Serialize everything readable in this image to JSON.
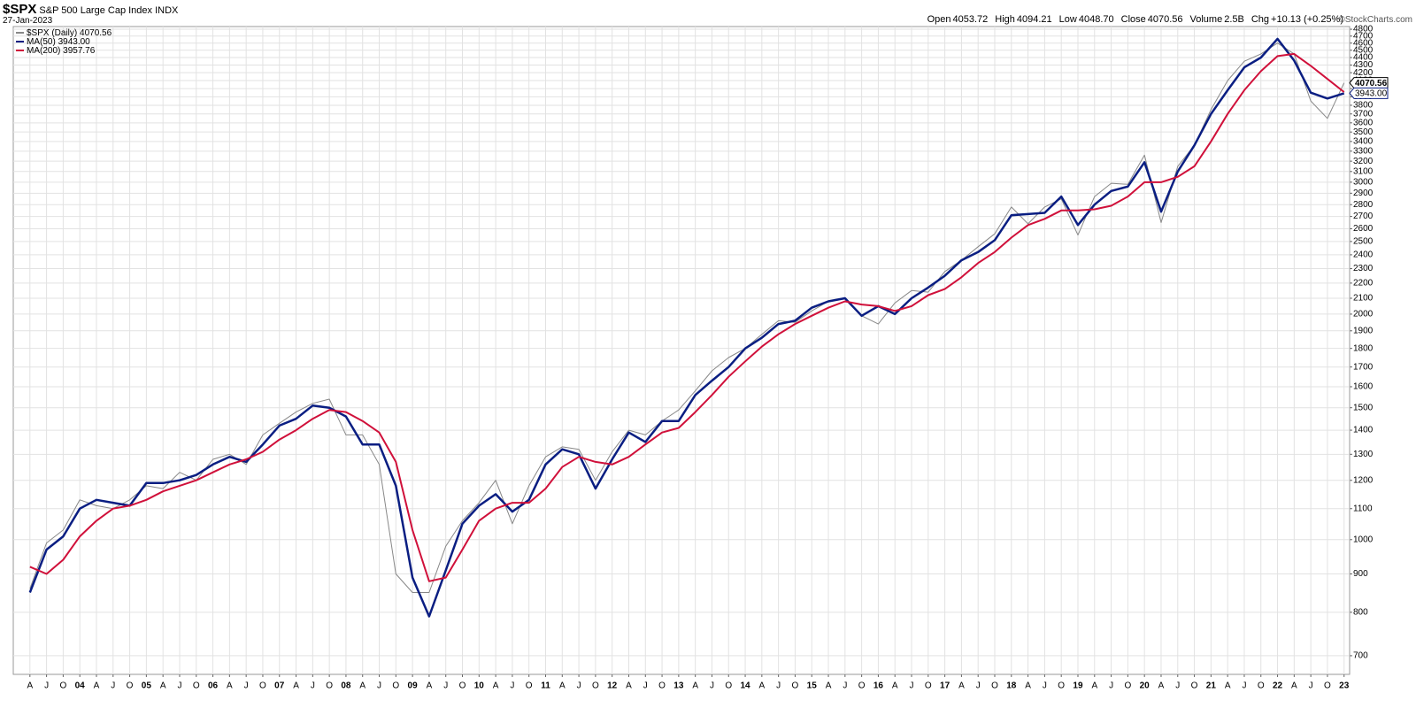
{
  "chart_data": {
    "type": "line",
    "symbol": "$SPX",
    "title": "S&P 500 Large Cap Index",
    "exchange": "INDX",
    "date": "27-Jan-2023",
    "quote": [
      {
        "label": "Open",
        "value": "4053.72"
      },
      {
        "label": "High",
        "value": "4094.21"
      },
      {
        "label": "Low",
        "value": "4048.70"
      },
      {
        "label": "Close",
        "value": "4070.56"
      },
      {
        "label": "Volume",
        "value": "2.5B"
      },
      {
        "label": "Chg",
        "value": "+10.13 (+0.25%)"
      }
    ],
    "copyright": "©StockCharts.com",
    "log_scale": true,
    "grid": true,
    "xlim": [
      "2003-01",
      "2023-02"
    ],
    "ylim": [
      661,
      4840
    ],
    "yticks": [
      700,
      800,
      900,
      1000,
      1100,
      1200,
      1300,
      1400,
      1500,
      1600,
      1700,
      1800,
      1900,
      2000,
      2100,
      2200,
      2300,
      2400,
      2500,
      2600,
      2700,
      2800,
      2900,
      3000,
      3100,
      3200,
      3300,
      3400,
      3500,
      3600,
      3700,
      3800,
      3900,
      4000,
      4100,
      4200,
      4300,
      4400,
      4500,
      4600,
      4700,
      4800
    ],
    "xticks": [
      {
        "value": "2003-04",
        "label": "A"
      },
      {
        "value": "2003-07",
        "label": "J"
      },
      {
        "value": "2003-10",
        "label": "O"
      },
      {
        "value": "2004-01",
        "label": "04"
      },
      {
        "value": "2004-04",
        "label": "A"
      },
      {
        "value": "2004-07",
        "label": "J"
      },
      {
        "value": "2004-10",
        "label": "O"
      },
      {
        "value": "2005-01",
        "label": "05"
      },
      {
        "value": "2005-04",
        "label": "A"
      },
      {
        "value": "2005-07",
        "label": "J"
      },
      {
        "value": "2005-10",
        "label": "O"
      },
      {
        "value": "2006-01",
        "label": "06"
      },
      {
        "value": "2006-04",
        "label": "A"
      },
      {
        "value": "2006-07",
        "label": "J"
      },
      {
        "value": "2006-10",
        "label": "O"
      },
      {
        "value": "2007-01",
        "label": "07"
      },
      {
        "value": "2007-04",
        "label": "A"
      },
      {
        "value": "2007-07",
        "label": "J"
      },
      {
        "value": "2007-10",
        "label": "O"
      },
      {
        "value": "2008-01",
        "label": "08"
      },
      {
        "value": "2008-04",
        "label": "A"
      },
      {
        "value": "2008-07",
        "label": "J"
      },
      {
        "value": "2008-10",
        "label": "O"
      },
      {
        "value": "2009-01",
        "label": "09"
      },
      {
        "value": "2009-04",
        "label": "A"
      },
      {
        "value": "2009-07",
        "label": "J"
      },
      {
        "value": "2009-10",
        "label": "O"
      },
      {
        "value": "2010-01",
        "label": "10"
      },
      {
        "value": "2010-04",
        "label": "A"
      },
      {
        "value": "2010-07",
        "label": "J"
      },
      {
        "value": "2010-10",
        "label": "O"
      },
      {
        "value": "2011-01",
        "label": "11"
      },
      {
        "value": "2011-04",
        "label": "A"
      },
      {
        "value": "2011-07",
        "label": "J"
      },
      {
        "value": "2011-10",
        "label": "O"
      },
      {
        "value": "2012-01",
        "label": "12"
      },
      {
        "value": "2012-04",
        "label": "A"
      },
      {
        "value": "2012-07",
        "label": "J"
      },
      {
        "value": "2012-10",
        "label": "O"
      },
      {
        "value": "2013-01",
        "label": "13"
      },
      {
        "value": "2013-04",
        "label": "A"
      },
      {
        "value": "2013-07",
        "label": "J"
      },
      {
        "value": "2013-10",
        "label": "O"
      },
      {
        "value": "2014-01",
        "label": "14"
      },
      {
        "value": "2014-04",
        "label": "A"
      },
      {
        "value": "2014-07",
        "label": "J"
      },
      {
        "value": "2014-10",
        "label": "O"
      },
      {
        "value": "2015-01",
        "label": "15"
      },
      {
        "value": "2015-04",
        "label": "A"
      },
      {
        "value": "2015-07",
        "label": "J"
      },
      {
        "value": "2015-10",
        "label": "O"
      },
      {
        "value": "2016-01",
        "label": "16"
      },
      {
        "value": "2016-04",
        "label": "A"
      },
      {
        "value": "2016-07",
        "label": "J"
      },
      {
        "value": "2016-10",
        "label": "O"
      },
      {
        "value": "2017-01",
        "label": "17"
      },
      {
        "value": "2017-04",
        "label": "A"
      },
      {
        "value": "2017-07",
        "label": "J"
      },
      {
        "value": "2017-10",
        "label": "O"
      },
      {
        "value": "2018-01",
        "label": "18"
      },
      {
        "value": "2018-04",
        "label": "A"
      },
      {
        "value": "2018-07",
        "label": "J"
      },
      {
        "value": "2018-10",
        "label": "O"
      },
      {
        "value": "2019-01",
        "label": "19"
      },
      {
        "value": "2019-04",
        "label": "A"
      },
      {
        "value": "2019-07",
        "label": "J"
      },
      {
        "value": "2019-10",
        "label": "O"
      },
      {
        "value": "2020-01",
        "label": "20"
      },
      {
        "value": "2020-04",
        "label": "A"
      },
      {
        "value": "2020-07",
        "label": "J"
      },
      {
        "value": "2020-10",
        "label": "O"
      },
      {
        "value": "2021-01",
        "label": "21"
      },
      {
        "value": "2021-04",
        "label": "A"
      },
      {
        "value": "2021-07",
        "label": "J"
      },
      {
        "value": "2021-10",
        "label": "O"
      },
      {
        "value": "2022-01",
        "label": "22"
      },
      {
        "value": "2022-04",
        "label": "A"
      },
      {
        "value": "2022-07",
        "label": "J"
      },
      {
        "value": "2022-10",
        "label": "O"
      },
      {
        "value": "2023-01",
        "label": "23"
      }
    ],
    "x": [
      "2003-04",
      "2003-07",
      "2003-10",
      "2004-01",
      "2004-04",
      "2004-07",
      "2004-10",
      "2005-01",
      "2005-04",
      "2005-07",
      "2005-10",
      "2006-01",
      "2006-04",
      "2006-07",
      "2006-10",
      "2007-01",
      "2007-04",
      "2007-07",
      "2007-10",
      "2008-01",
      "2008-04",
      "2008-07",
      "2008-10",
      "2009-01",
      "2009-04",
      "2009-07",
      "2009-10",
      "2010-01",
      "2010-04",
      "2010-07",
      "2010-10",
      "2011-01",
      "2011-04",
      "2011-07",
      "2011-10",
      "2012-01",
      "2012-04",
      "2012-07",
      "2012-10",
      "2013-01",
      "2013-04",
      "2013-07",
      "2013-10",
      "2014-01",
      "2014-04",
      "2014-07",
      "2014-10",
      "2015-01",
      "2015-04",
      "2015-07",
      "2015-10",
      "2016-01",
      "2016-04",
      "2016-07",
      "2016-10",
      "2017-01",
      "2017-04",
      "2017-07",
      "2017-10",
      "2018-01",
      "2018-04",
      "2018-07",
      "2018-10",
      "2019-01",
      "2019-04",
      "2019-07",
      "2019-10",
      "2020-01",
      "2020-04",
      "2020-07",
      "2020-10",
      "2021-01",
      "2021-04",
      "2021-07",
      "2021-10",
      "2022-01",
      "2022-04",
      "2022-07",
      "2022-10",
      "2023-01"
    ],
    "series": [
      {
        "name": "$SPX (Daily)",
        "color": "#888888",
        "width": 1,
        "last_value_label": "4070.56",
        "price_tag": true,
        "values": [
          860,
          990,
          1030,
          1130,
          1110,
          1100,
          1130,
          1180,
          1170,
          1230,
          1200,
          1280,
          1300,
          1260,
          1380,
          1430,
          1480,
          1520,
          1540,
          1380,
          1380,
          1260,
          900,
          850,
          850,
          980,
          1060,
          1120,
          1200,
          1050,
          1180,
          1290,
          1330,
          1320,
          1200,
          1310,
          1400,
          1380,
          1440,
          1490,
          1580,
          1680,
          1750,
          1800,
          1880,
          1960,
          1950,
          2020,
          2080,
          2100,
          1990,
          1940,
          2070,
          2150,
          2140,
          2280,
          2360,
          2460,
          2560,
          2780,
          2640,
          2780,
          2850,
          2550,
          2870,
          2990,
          2980,
          3260,
          2650,
          3150,
          3360,
          3750,
          4100,
          4350,
          4450,
          4600,
          4450,
          3850,
          3650,
          4070.56
        ]
      },
      {
        "name": "MA(50)",
        "color": "#0a1e82",
        "width": 2.5,
        "last_value_label": "3943.00",
        "price_tag": true,
        "values": [
          850,
          970,
          1010,
          1100,
          1130,
          1120,
          1110,
          1190,
          1190,
          1200,
          1220,
          1260,
          1290,
          1270,
          1340,
          1420,
          1450,
          1510,
          1500,
          1460,
          1340,
          1340,
          1180,
          890,
          790,
          910,
          1050,
          1110,
          1150,
          1090,
          1130,
          1260,
          1320,
          1300,
          1170,
          1280,
          1390,
          1350,
          1440,
          1440,
          1560,
          1630,
          1700,
          1800,
          1860,
          1940,
          1960,
          2040,
          2080,
          2100,
          1990,
          2050,
          2000,
          2100,
          2170,
          2250,
          2360,
          2420,
          2510,
          2710,
          2720,
          2730,
          2870,
          2630,
          2800,
          2920,
          2960,
          3190,
          2740,
          3100,
          3360,
          3700,
          3980,
          4270,
          4400,
          4660,
          4360,
          3950,
          3880,
          3943
        ]
      },
      {
        "name": "MA(200)",
        "color": "#d0103a",
        "width": 2,
        "last_value_label": "3957.76",
        "price_tag": false,
        "values": [
          920,
          900,
          940,
          1010,
          1060,
          1100,
          1110,
          1130,
          1160,
          1180,
          1200,
          1230,
          1260,
          1280,
          1310,
          1360,
          1400,
          1450,
          1490,
          1480,
          1440,
          1390,
          1270,
          1030,
          880,
          890,
          970,
          1060,
          1100,
          1120,
          1120,
          1170,
          1250,
          1290,
          1270,
          1260,
          1290,
          1340,
          1390,
          1410,
          1480,
          1560,
          1650,
          1730,
          1810,
          1880,
          1940,
          1990,
          2040,
          2080,
          2060,
          2050,
          2020,
          2050,
          2120,
          2160,
          2240,
          2340,
          2420,
          2530,
          2630,
          2680,
          2750,
          2750,
          2760,
          2790,
          2870,
          3000,
          3000,
          3050,
          3150,
          3400,
          3700,
          3980,
          4220,
          4420,
          4450,
          4290,
          4120,
          3957.76
        ]
      }
    ]
  }
}
